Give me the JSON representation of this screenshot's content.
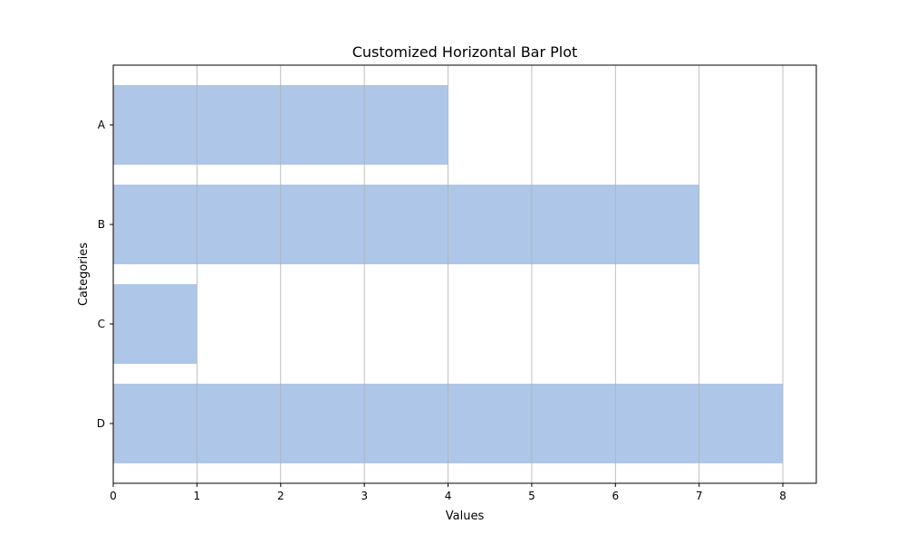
{
  "chart_data": {
    "type": "bar",
    "orientation": "horizontal",
    "title": "Customized Horizontal Bar Plot",
    "xlabel": "Values",
    "ylabel": "Categories",
    "categories": [
      "A",
      "B",
      "C",
      "D"
    ],
    "values": [
      4,
      7,
      1,
      8
    ],
    "xlim": [
      0,
      8.4
    ],
    "xticks": [
      0,
      1,
      2,
      3,
      4,
      5,
      6,
      7,
      8
    ],
    "grid": "x",
    "legend": "none",
    "colors": {
      "bar": "#aec7e8",
      "grid": "#b0b0b0",
      "axis": "#000000",
      "background": "#ffffff"
    }
  }
}
